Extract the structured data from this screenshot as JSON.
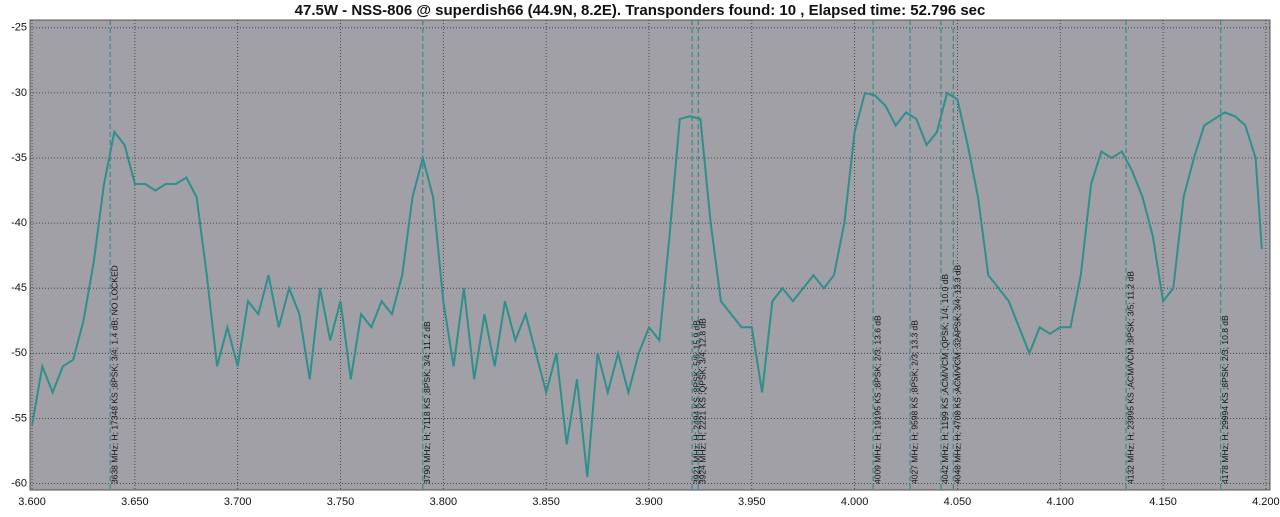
{
  "chart_data": {
    "type": "line",
    "title": "47.5W - NSS-806 @ superdish66 (44.9N, 8.2E). Transponders found: 10 , Elapsed time: 52.796 sec",
    "background": "#a0a0a6",
    "grid": true,
    "xlim": [
      3.599,
      4.202
    ],
    "ylim": [
      -60.5,
      -24.4
    ],
    "xticks": [
      {
        "value": 3.6,
        "label": "3.600"
      },
      {
        "value": 3.65,
        "label": "3.650"
      },
      {
        "value": 3.7,
        "label": "3.700"
      },
      {
        "value": 3.75,
        "label": "3.750"
      },
      {
        "value": 3.8,
        "label": "3.800"
      },
      {
        "value": 3.85,
        "label": "3.850"
      },
      {
        "value": 3.9,
        "label": "3.900"
      },
      {
        "value": 3.95,
        "label": "3.950"
      },
      {
        "value": 4.0,
        "label": "4.000"
      },
      {
        "value": 4.05,
        "label": "4.050"
      },
      {
        "value": 4.1,
        "label": "4.100"
      },
      {
        "value": 4.15,
        "label": "4.150"
      },
      {
        "value": 4.2,
        "label": "4.200"
      }
    ],
    "yticks": [
      -25,
      -30,
      -35,
      -40,
      -45,
      -50,
      -55,
      -60
    ],
    "series": [
      {
        "color": "#2e8f8c",
        "x": [
          3.6,
          3.605,
          3.61,
          3.615,
          3.62,
          3.625,
          3.63,
          3.635,
          3.64,
          3.645,
          3.65,
          3.655,
          3.66,
          3.665,
          3.67,
          3.675,
          3.68,
          3.685,
          3.69,
          3.695,
          3.7,
          3.705,
          3.71,
          3.715,
          3.72,
          3.725,
          3.73,
          3.735,
          3.74,
          3.745,
          3.75,
          3.755,
          3.76,
          3.765,
          3.77,
          3.775,
          3.78,
          3.785,
          3.79,
          3.795,
          3.8,
          3.805,
          3.81,
          3.815,
          3.82,
          3.825,
          3.83,
          3.835,
          3.84,
          3.845,
          3.85,
          3.855,
          3.86,
          3.865,
          3.87,
          3.875,
          3.88,
          3.885,
          3.89,
          3.895,
          3.9,
          3.905,
          3.91,
          3.915,
          3.92,
          3.925,
          3.93,
          3.935,
          3.94,
          3.945,
          3.95,
          3.955,
          3.96,
          3.965,
          3.97,
          3.975,
          3.98,
          3.985,
          3.99,
          3.995,
          4.0,
          4.005,
          4.01,
          4.015,
          4.02,
          4.025,
          4.03,
          4.035,
          4.04,
          4.045,
          4.05,
          4.055,
          4.06,
          4.065,
          4.07,
          4.075,
          4.08,
          4.085,
          4.09,
          4.095,
          4.1,
          4.105,
          4.11,
          4.115,
          4.12,
          4.125,
          4.13,
          4.135,
          4.14,
          4.145,
          4.15,
          4.155,
          4.16,
          4.165,
          4.17,
          4.175,
          4.18,
          4.185,
          4.19,
          4.195,
          4.198
        ],
        "values": [
          -55.5,
          -51,
          -53,
          -51,
          -50.5,
          -47.5,
          -43,
          -37,
          -33,
          -34,
          -37,
          -37,
          -37.5,
          -37,
          -37,
          -36.5,
          -38,
          -44,
          -51,
          -48,
          -51,
          -46,
          -47,
          -44,
          -48,
          -45,
          -47,
          -52,
          -45,
          -49,
          -46,
          -52,
          -47,
          -48,
          -46,
          -47,
          -44,
          -38,
          -35,
          -38,
          -46,
          -51,
          -45,
          -52,
          -47,
          -51,
          -46,
          -49,
          -47,
          -50,
          -53,
          -50,
          -57,
          -52,
          -59.5,
          -50,
          -53,
          -50,
          -53,
          -50,
          -48,
          -49,
          -41,
          -32,
          -31.8,
          -32,
          -40,
          -46,
          -47,
          -48,
          -48,
          -53,
          -46,
          -45,
          -46,
          -45,
          -44,
          -45,
          -44,
          -40,
          -33,
          -30,
          -30.2,
          -31,
          -32.5,
          -31.5,
          -32,
          -34,
          -33,
          -30,
          -30.5,
          -34,
          -38,
          -44,
          -45,
          -46,
          -48,
          -50,
          -48,
          -48.5,
          -48,
          -48,
          -44,
          -37,
          -34.5,
          -35,
          -34.5,
          -36,
          -38,
          -41,
          -46,
          -45,
          -38,
          -35,
          -32.5,
          -32,
          -31.5,
          -31.8,
          -32.5,
          -35,
          -42
        ]
      }
    ],
    "markers": [
      {
        "x": 3.638,
        "label": "3638 MHz; H; 17348 KS ;8PSK; 3/4; 1.4 dB; NO LOCKED"
      },
      {
        "x": 3.79,
        "label": "3790 MHz; H; 7118 KS ;8PSK; 3/4; 11.2 dB"
      },
      {
        "x": 3.921,
        "label": "3921 MHz; H; 2494 KS ;8PSK; 5/6; 15.9 dB"
      },
      {
        "x": 3.924,
        "label": "3924 MHz; H; 2221 KS ;QPSK; 3/4; 12.8 dB"
      },
      {
        "x": 4.009,
        "label": "4009 MHz; H; 19195 KS ;8PSK; 2/3; 13.6 dB"
      },
      {
        "x": 4.027,
        "label": "4027 MHz; H; 9598 KS ;8PSK; 2/3; 13.3 dB"
      },
      {
        "x": 4.042,
        "label": "4042 MHz; H; 1199 KS ;ACM/VCM ;QPSK; 1/4; 10.0 dB"
      },
      {
        "x": 4.048,
        "label": "4048 MHz; H; 4708 KS ;ACM/VCM ;32APSK; 3/4; 13.3 dB"
      },
      {
        "x": 4.132,
        "label": "4132 MHz; H; 23995 KS ;ACM/VCM ;8PSK; 3/5; 11.2 dB"
      },
      {
        "x": 4.178,
        "label": "4178 MHz; H; 29994 KS ;8PSK; 2/3; 10.8 dB"
      }
    ]
  }
}
